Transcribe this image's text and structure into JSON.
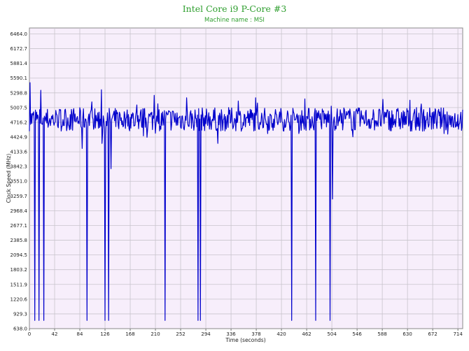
{
  "chart_data": {
    "type": "line",
    "title": "Intel Core i9 P-Core #3",
    "subtitle": "Machine name : MSI",
    "xlabel": "Time (seconds)",
    "ylabel": "Clock Speed (MHz)",
    "xlim": [
      0,
      722
    ],
    "ylim": [
      638.0,
      6581.3
    ],
    "x_ticks": [
      "0",
      "42",
      "84",
      "126",
      "168",
      "210",
      "252",
      "294",
      "336",
      "378",
      "420",
      "462",
      "504",
      "546",
      "588",
      "630",
      "672",
      "714"
    ],
    "y_ticks": [
      "638.0",
      "929.3",
      "1220.6",
      "1511.9",
      "1803.2",
      "2094.5",
      "2385.8",
      "2677.1",
      "2968.4",
      "3259.7",
      "3551.0",
      "3842.3",
      "4133.6",
      "4424.9",
      "4716.2",
      "5007.5",
      "5298.8",
      "5590.1",
      "5881.4",
      "6172.7",
      "6464.0"
    ],
    "grid": true,
    "colors": {
      "background": "#f7eefb",
      "grid": "#c8c4cc",
      "line": "#0000cc",
      "title": "#2e9e2e"
    },
    "series": [
      {
        "values_summary": "Clock speed fluctuating mostly between 4450 and 5100 MHz over ~722 seconds, with occasional peaks near 5300 MHz and sharp drops to about 800 MHz.",
        "baseline_range": [
          4500,
          5050
        ],
        "peaks": [
          [
            1,
            5500
          ],
          [
            19,
            5350
          ],
          [
            120,
            5360
          ],
          [
            208,
            5250
          ],
          [
            262,
            5200
          ]
        ],
        "dips": [
          [
            9,
            800
          ],
          [
            16,
            800
          ],
          [
            24,
            800
          ],
          [
            88,
            4200
          ],
          [
            96,
            800
          ],
          [
            121,
            4300
          ],
          [
            126,
            800
          ],
          [
            132,
            800
          ],
          [
            136,
            3800
          ],
          [
            226,
            800
          ],
          [
            281,
            800
          ],
          [
            285,
            800
          ],
          [
            314,
            4300
          ],
          [
            437,
            800
          ],
          [
            477,
            800
          ],
          [
            501,
            800
          ],
          [
            505,
            3200
          ]
        ]
      }
    ]
  }
}
